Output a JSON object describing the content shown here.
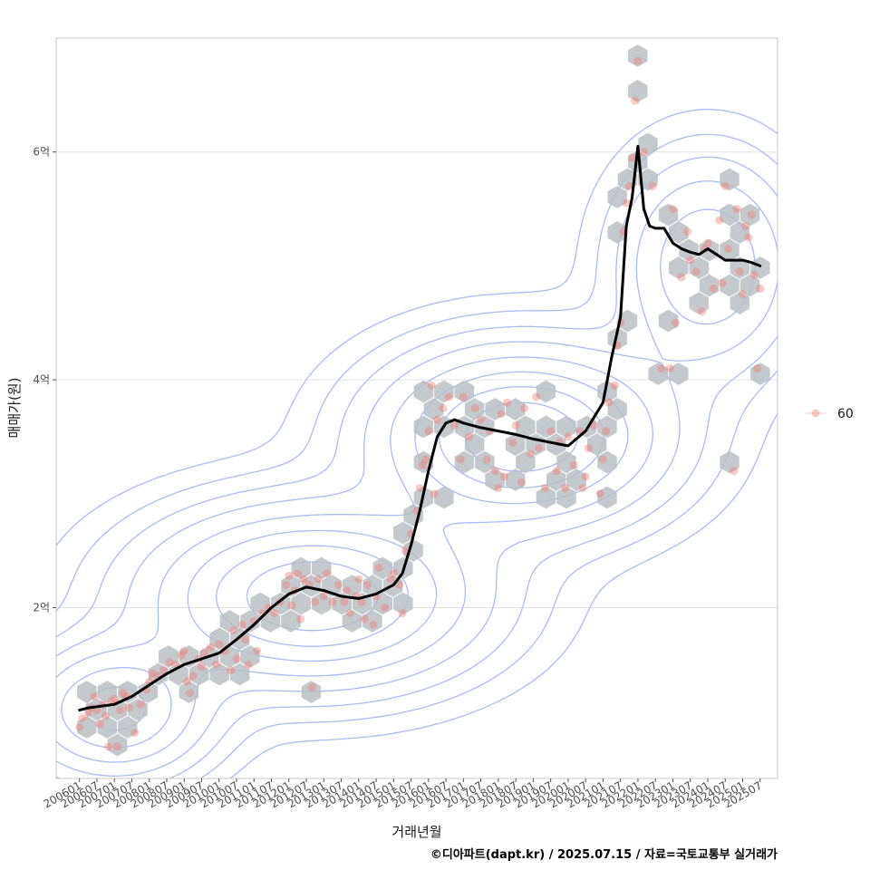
{
  "chart_data": {
    "type": "scatter",
    "xlabel": "거래년월",
    "ylabel": "매매가(원)",
    "caption": "©디아파트(dapt.kr) / 2025.07.15 / 자료=국토교통부 실거래가",
    "y_unit": "억",
    "ylim": [
      0.5,
      7.0
    ],
    "xlim": [
      "2005-05",
      "2026-01"
    ],
    "grid": true,
    "legend_position": "right",
    "x_ticks": [
      "200601",
      "200607",
      "200701",
      "200707",
      "200801",
      "200807",
      "200901",
      "200907",
      "201001",
      "201007",
      "201101",
      "201107",
      "201201",
      "201207",
      "201301",
      "201307",
      "201401",
      "201407",
      "201501",
      "201507",
      "201601",
      "201607",
      "201701",
      "201707",
      "201801",
      "201807",
      "201901",
      "201907",
      "202001",
      "202007",
      "202101",
      "202107",
      "202201",
      "202207",
      "202301",
      "202307",
      "202401",
      "202407",
      "202501",
      "202507"
    ],
    "y_ticks": [
      {
        "value": 2,
        "label": "2억"
      },
      {
        "value": 4,
        "label": "4억"
      },
      {
        "value": 6,
        "label": "6억"
      }
    ],
    "legend": [
      {
        "label": "60",
        "color": "#F8766D"
      }
    ],
    "colors": {
      "points": "#F8766D",
      "hex": "#b8bfc4",
      "contour": "#aabcf0",
      "trend": "#000000",
      "grid": "#e3e3e3",
      "panel_border": "#c8c8c8"
    },
    "scatter": {
      "name": "60",
      "points": [
        [
          "2006-01",
          0.95
        ],
        [
          "2006-02",
          1.03
        ],
        [
          "2006-04",
          1.08
        ],
        [
          "2006-05",
          1.12
        ],
        [
          "2006-06",
          1.22
        ],
        [
          "2006-07",
          1.1
        ],
        [
          "2006-08",
          0.98
        ],
        [
          "2006-09",
          1.15
        ],
        [
          "2006-10",
          1.05
        ],
        [
          "2006-11",
          0.78
        ],
        [
          "2006-12",
          1.18
        ],
        [
          "2007-01",
          1.2
        ],
        [
          "2007-02",
          0.78
        ],
        [
          "2007-03",
          1.1
        ],
        [
          "2007-04",
          1.25
        ],
        [
          "2007-05",
          1.22
        ],
        [
          "2007-06",
          1.12
        ],
        [
          "2007-08",
          0.9
        ],
        [
          "2007-10",
          1.15
        ],
        [
          "2007-12",
          1.28
        ],
        [
          "2008-01",
          1.35
        ],
        [
          "2008-02",
          1.42
        ],
        [
          "2008-04",
          1.4
        ],
        [
          "2008-06",
          1.45
        ],
        [
          "2008-08",
          1.52
        ],
        [
          "2008-10",
          1.5
        ],
        [
          "2008-12",
          1.58
        ],
        [
          "2009-01",
          1.62
        ],
        [
          "2009-02",
          1.35
        ],
        [
          "2009-03",
          1.25
        ],
        [
          "2009-04",
          1.4
        ],
        [
          "2009-06",
          1.55
        ],
        [
          "2009-07",
          1.48
        ],
        [
          "2009-08",
          1.6
        ],
        [
          "2009-10",
          1.65
        ],
        [
          "2009-12",
          1.5
        ],
        [
          "2010-01",
          1.68
        ],
        [
          "2010-03",
          1.62
        ],
        [
          "2010-05",
          1.45
        ],
        [
          "2010-06",
          1.8
        ],
        [
          "2010-07",
          1.55
        ],
        [
          "2010-09",
          1.85
        ],
        [
          "2010-10",
          1.72
        ],
        [
          "2010-11",
          1.5
        ],
        [
          "2011-01",
          1.88
        ],
        [
          "2011-02",
          1.62
        ],
        [
          "2011-04",
          1.95
        ],
        [
          "2011-06",
          2.0
        ],
        [
          "2011-08",
          1.95
        ],
        [
          "2011-10",
          2.05
        ],
        [
          "2011-12",
          2.2
        ],
        [
          "2012-01",
          2.28
        ],
        [
          "2012-02",
          2.02
        ],
        [
          "2012-03",
          2.15
        ],
        [
          "2012-04",
          2.3
        ],
        [
          "2012-05",
          1.9
        ],
        [
          "2012-06",
          2.25
        ],
        [
          "2012-08",
          2.2
        ],
        [
          "2012-09",
          1.3
        ],
        [
          "2012-10",
          2.05
        ],
        [
          "2012-11",
          2.25
        ],
        [
          "2013-01",
          2.1
        ],
        [
          "2013-02",
          2.3
        ],
        [
          "2013-04",
          2.05
        ],
        [
          "2013-06",
          2.2
        ],
        [
          "2013-08",
          2.05
        ],
        [
          "2013-09",
          2.15
        ],
        [
          "2013-10",
          1.95
        ],
        [
          "2013-12",
          2.1
        ],
        [
          "2014-01",
          2.25
        ],
        [
          "2014-02",
          2.05
        ],
        [
          "2014-03",
          1.9
        ],
        [
          "2014-04",
          2.2
        ],
        [
          "2014-06",
          1.85
        ],
        [
          "2014-07",
          2.1
        ],
        [
          "2014-08",
          2.35
        ],
        [
          "2014-10",
          2.0
        ],
        [
          "2014-12",
          2.25
        ],
        [
          "2015-01",
          2.3
        ],
        [
          "2015-03",
          2.2
        ],
        [
          "2015-04",
          1.95
        ],
        [
          "2015-05",
          2.5
        ],
        [
          "2015-07",
          2.65
        ],
        [
          "2015-09",
          2.85
        ],
        [
          "2015-10",
          3.05
        ],
        [
          "2015-11",
          3.25
        ],
        [
          "2015-12",
          3.3
        ],
        [
          "2016-01",
          3.55
        ],
        [
          "2016-02",
          3.95
        ],
        [
          "2016-03",
          3.0
        ],
        [
          "2016-04",
          3.65
        ],
        [
          "2016-06",
          3.75
        ],
        [
          "2016-08",
          3.85
        ],
        [
          "2016-10",
          3.6
        ],
        [
          "2016-12",
          3.3
        ],
        [
          "2017-01",
          3.85
        ],
        [
          "2017-03",
          3.5
        ],
        [
          "2017-05",
          3.75
        ],
        [
          "2017-07",
          3.65
        ],
        [
          "2017-09",
          3.3
        ],
        [
          "2017-10",
          3.55
        ],
        [
          "2017-12",
          3.2
        ],
        [
          "2018-01",
          3.05
        ],
        [
          "2018-02",
          3.7
        ],
        [
          "2018-03",
          3.15
        ],
        [
          "2018-04",
          3.8
        ],
        [
          "2018-06",
          3.45
        ],
        [
          "2018-07",
          3.6
        ],
        [
          "2018-09",
          3.1
        ],
        [
          "2018-10",
          3.75
        ],
        [
          "2018-12",
          3.35
        ],
        [
          "2019-02",
          3.85
        ],
        [
          "2019-03",
          3.4
        ],
        [
          "2019-05",
          3.05
        ],
        [
          "2019-07",
          3.55
        ],
        [
          "2019-09",
          3.2
        ],
        [
          "2019-10",
          3.45
        ],
        [
          "2019-12",
          3.05
        ],
        [
          "2020-01",
          3.5
        ],
        [
          "2020-03",
          3.25
        ],
        [
          "2020-05",
          3.55
        ],
        [
          "2020-06",
          3.05
        ],
        [
          "2020-07",
          3.15
        ],
        [
          "2020-08",
          3.4
        ],
        [
          "2020-10",
          3.6
        ],
        [
          "2020-12",
          3.0
        ],
        [
          "2021-01",
          3.3
        ],
        [
          "2021-02",
          3.55
        ],
        [
          "2021-03",
          3.8
        ],
        [
          "2021-05",
          3.95
        ],
        [
          "2021-06",
          4.3
        ],
        [
          "2021-07",
          4.5
        ],
        [
          "2021-08",
          5.3
        ],
        [
          "2021-09",
          5.55
        ],
        [
          "2021-10",
          5.7
        ],
        [
          "2021-11",
          5.95
        ],
        [
          "2021-12",
          6.45
        ],
        [
          "2022-01",
          6.8
        ],
        [
          "2022-03",
          6.0
        ],
        [
          "2022-06",
          5.7
        ],
        [
          "2022-09",
          4.1
        ],
        [
          "2022-12",
          4.1
        ],
        [
          "2023-01",
          5.5
        ],
        [
          "2023-02",
          4.5
        ],
        [
          "2023-04",
          4.9
        ],
        [
          "2023-06",
          5.3
        ],
        [
          "2023-07",
          5.05
        ],
        [
          "2023-09",
          4.95
        ],
        [
          "2023-11",
          4.6
        ],
        [
          "2023-12",
          5.15
        ],
        [
          "2024-01",
          5.2
        ],
        [
          "2024-03",
          4.8
        ],
        [
          "2024-05",
          5.4
        ],
        [
          "2024-06",
          4.85
        ],
        [
          "2024-07",
          5.7
        ],
        [
          "2024-08",
          5.15
        ],
        [
          "2024-10",
          3.2
        ],
        [
          "2024-11",
          5.5
        ],
        [
          "2024-12",
          4.95
        ],
        [
          "2025-01",
          4.75
        ],
        [
          "2025-02",
          5.35
        ],
        [
          "2025-03",
          5.25
        ],
        [
          "2025-04",
          5.45
        ],
        [
          "2025-05",
          4.92
        ],
        [
          "2025-06",
          4.1
        ],
        [
          "2025-07",
          4.8
        ]
      ]
    },
    "trend": {
      "x": [
        "2006-01",
        "2006-04",
        "2006-07",
        "2007-01",
        "2007-07",
        "2008-01",
        "2008-07",
        "2009-01",
        "2009-07",
        "2010-01",
        "2010-07",
        "2011-01",
        "2011-07",
        "2012-01",
        "2012-07",
        "2013-01",
        "2013-07",
        "2014-01",
        "2014-07",
        "2015-01",
        "2015-04",
        "2015-07",
        "2015-10",
        "2016-01",
        "2016-04",
        "2016-07",
        "2016-10",
        "2017-01",
        "2017-07",
        "2018-01",
        "2018-07",
        "2019-01",
        "2019-07",
        "2020-01",
        "2020-07",
        "2021-01",
        "2021-04",
        "2021-07",
        "2021-09",
        "2021-11",
        "2022-01",
        "2022-03",
        "2022-05",
        "2022-07",
        "2022-10",
        "2023-01",
        "2023-04",
        "2023-07",
        "2023-10",
        "2024-01",
        "2024-04",
        "2024-07",
        "2024-10",
        "2025-01",
        "2025-04",
        "2025-07"
      ],
      "y": [
        1.1,
        1.12,
        1.13,
        1.15,
        1.22,
        1.32,
        1.42,
        1.5,
        1.55,
        1.6,
        1.72,
        1.85,
        2.0,
        2.12,
        2.18,
        2.15,
        2.1,
        2.08,
        2.12,
        2.2,
        2.3,
        2.55,
        2.85,
        3.2,
        3.5,
        3.62,
        3.65,
        3.62,
        3.58,
        3.55,
        3.52,
        3.48,
        3.45,
        3.42,
        3.55,
        3.8,
        4.2,
        4.55,
        5.35,
        5.6,
        6.05,
        5.5,
        5.35,
        5.33,
        5.33,
        5.2,
        5.15,
        5.12,
        5.1,
        5.15,
        5.1,
        5.05,
        5.05,
        5.05,
        5.03,
        5.0
      ]
    },
    "density_peaks": [
      {
        "x": "2007-01",
        "y": 1.1,
        "sx": 1.6,
        "sy": 0.35,
        "w": 0.7
      },
      {
        "x": "2012-09",
        "y": 2.1,
        "sx": 2.8,
        "sy": 0.45,
        "w": 1.0
      },
      {
        "x": "2018-09",
        "y": 3.5,
        "sx": 2.4,
        "sy": 0.45,
        "w": 1.0
      },
      {
        "x": "2024-01",
        "y": 5.0,
        "sx": 1.5,
        "sy": 0.55,
        "w": 0.45
      }
    ]
  }
}
